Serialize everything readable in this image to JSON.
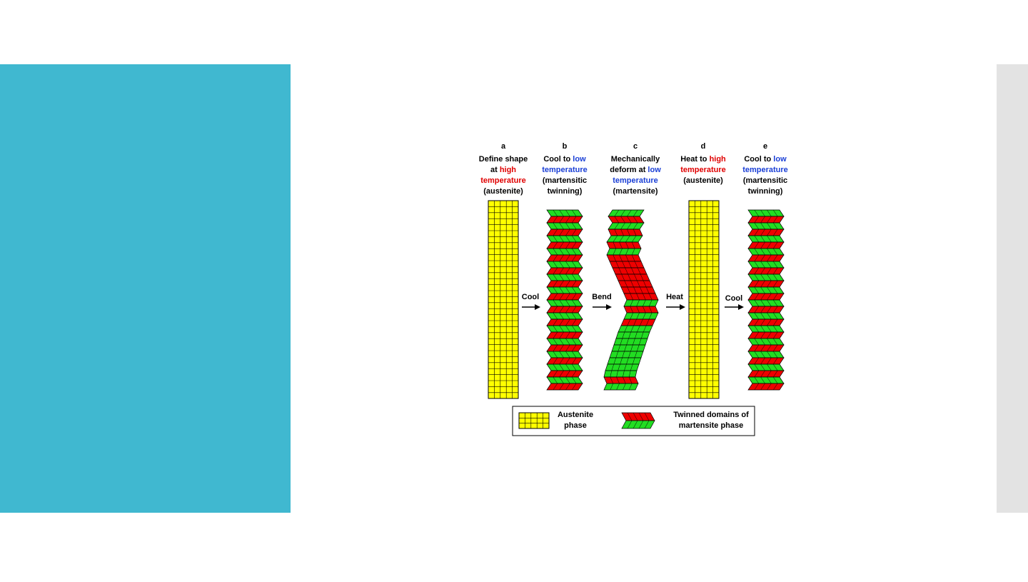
{
  "panels": [
    {
      "letter": "a",
      "caption": [
        [
          {
            "text": "Define shape"
          }
        ],
        [
          {
            "text": "at "
          },
          {
            "text": "high",
            "color": "#e00000"
          }
        ],
        [
          {
            "text": "temperature",
            "color": "#e00000"
          }
        ],
        [
          {
            "text": "(austenite)"
          }
        ]
      ]
    },
    {
      "letter": "b",
      "caption": [
        [
          {
            "text": "Cool to "
          },
          {
            "text": "low",
            "color": "#1a3fd6"
          }
        ],
        [
          {
            "text": "temperature",
            "color": "#1a3fd6"
          }
        ],
        [
          {
            "text": "(martensitic"
          }
        ],
        [
          {
            "text": "twinning)"
          }
        ]
      ]
    },
    {
      "letter": "c",
      "caption": [
        [
          {
            "text": "Mechanically"
          }
        ],
        [
          {
            "text": "deform at "
          },
          {
            "text": "low",
            "color": "#1a3fd6"
          }
        ],
        [
          {
            "text": "temperature",
            "color": "#1a3fd6"
          }
        ],
        [
          {
            "text": "(martensite)"
          }
        ]
      ]
    },
    {
      "letter": "d",
      "caption": [
        [
          {
            "text": "Heat to "
          },
          {
            "text": "high",
            "color": "#e00000"
          }
        ],
        [
          {
            "text": "temperature",
            "color": "#e00000"
          }
        ],
        [
          {
            "text": "(austenite)"
          }
        ]
      ]
    },
    {
      "letter": "e",
      "caption": [
        [
          {
            "text": "Cool to "
          },
          {
            "text": "low",
            "color": "#1a3fd6"
          }
        ],
        [
          {
            "text": "temperature",
            "color": "#1a3fd6"
          }
        ],
        [
          {
            "text": "(martensitic"
          }
        ],
        [
          {
            "text": "twinning)"
          }
        ]
      ]
    }
  ],
  "steps": [
    "Cool",
    "Bend",
    "Heat",
    "Cool"
  ],
  "legend": [
    {
      "label": [
        "Austenite",
        "phase"
      ]
    },
    {
      "label": [
        "Twinned domains of",
        "martensite phase"
      ]
    }
  ]
}
